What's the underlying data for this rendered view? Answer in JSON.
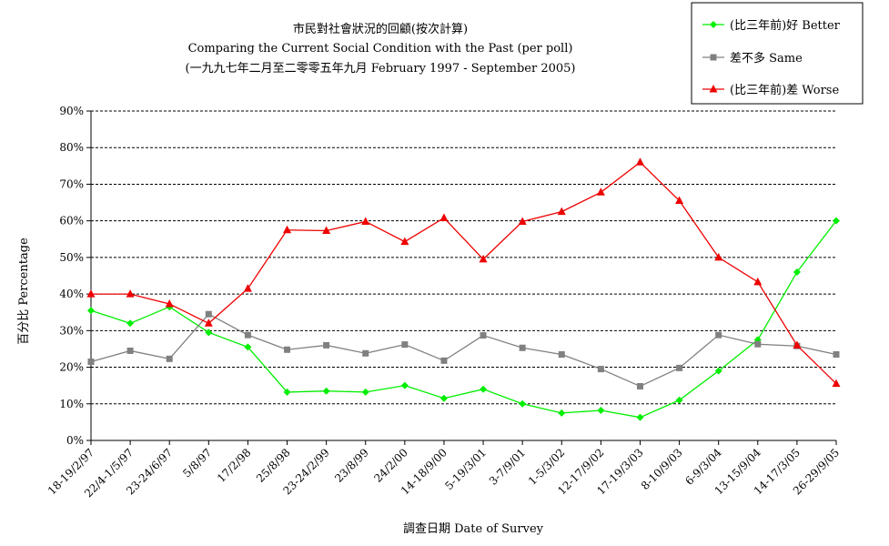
{
  "chart_data": {
    "type": "line",
    "title": "市民對社會狀況的回顧(按次計算)",
    "subtitle": "Comparing the Current Social Condition with the Past  (per poll)",
    "subtitle2": "(一九九七年二月至二零零五年九月 February 1997 - September 2005)",
    "xlabel": "調查日期 Date of Survey",
    "ylabel": "百分比 Percentage",
    "ylim": [
      0,
      90
    ],
    "yticks": [
      "0%",
      "10%",
      "20%",
      "30%",
      "40%",
      "50%",
      "60%",
      "70%",
      "80%",
      "90%"
    ],
    "grid": true,
    "legend_position": "top-right",
    "categories": [
      "18-19/2/97",
      "22/4-1/5/97",
      "23-24/6/97",
      "5/8/97",
      "17/2/98",
      "25/8/98",
      "23-24/2/99",
      "23/8/99",
      "24/2/00",
      "14-18/9/00",
      "5-19/3/01",
      "3-7/9/01",
      "1-5/3/02",
      "12-17/9/02",
      "17-19/3/03",
      "8-10/9/03",
      "6-9/3/04",
      "13-15/9/04",
      "14-17/3/05",
      "26-29/9/05"
    ],
    "series": [
      {
        "name": "(比三年前)好 Better",
        "color": "#00ee00",
        "marker": "diamond",
        "values": [
          35.5,
          32,
          36.5,
          29.5,
          25.5,
          13.2,
          13.5,
          13.2,
          15,
          11.5,
          14,
          10,
          7.5,
          8.2,
          6.3,
          11,
          19,
          27.5,
          46,
          60
        ]
      },
      {
        "name": "差不多 Same",
        "color": "#808080",
        "marker": "square",
        "values": [
          21.5,
          24.5,
          22.3,
          34.5,
          28.8,
          24.8,
          26,
          23.8,
          26.2,
          21.8,
          28.7,
          25.3,
          23.5,
          19.5,
          14.8,
          19.8,
          28.8,
          26.3,
          25.8,
          23.5
        ]
      },
      {
        "name": "(比三年前)差 Worse",
        "color": "#ee0000",
        "marker": "triangle",
        "values": [
          40,
          40,
          37.3,
          32,
          41.5,
          57.5,
          57.3,
          59.8,
          54.3,
          60.8,
          49.5,
          59.8,
          62.5,
          67.8,
          76,
          65.5,
          50,
          43.3,
          26,
          15.5
        ]
      }
    ]
  }
}
